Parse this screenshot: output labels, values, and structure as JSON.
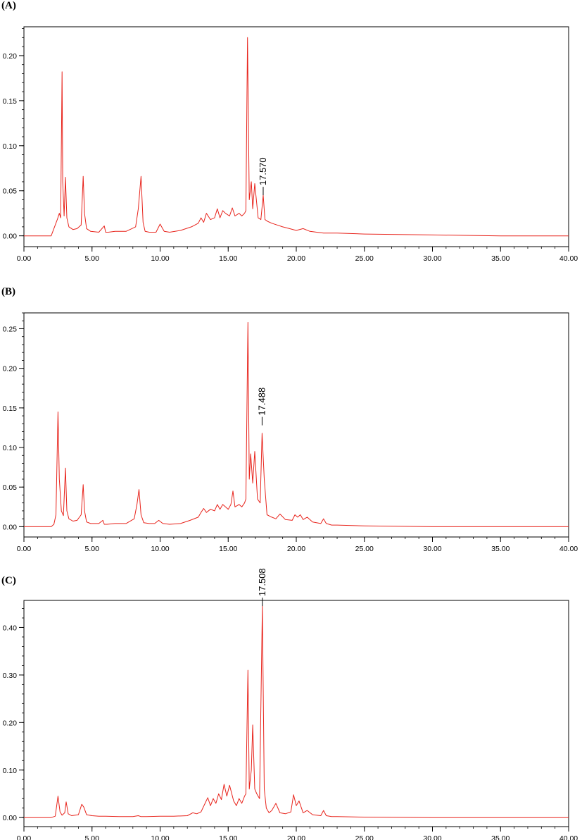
{
  "chart_data": [
    {
      "panel_label": "(A)",
      "type": "line",
      "xlim": [
        0,
        40
      ],
      "ylim": [
        -0.012,
        0.232
      ],
      "xticks": [
        "0.00",
        "5.00",
        "10.00",
        "15.00",
        "20.00",
        "25.00",
        "30.00",
        "35.00",
        "40.00"
      ],
      "xtick_values": [
        0,
        5,
        10,
        15,
        20,
        25,
        30,
        35,
        40
      ],
      "yticks": [
        "0.00",
        "0.05",
        "0.10",
        "0.15",
        "0.20"
      ],
      "ytick_values": [
        0,
        0.05,
        0.1,
        0.15,
        0.2
      ],
      "line_color": "#e8241c",
      "peak_annotation": {
        "text": "17.570",
        "x": 17.57,
        "y": 0.045
      },
      "series": [
        {
          "x": [
            0,
            2.0,
            2.3,
            2.45,
            2.6,
            2.7,
            2.8,
            2.85,
            2.95,
            3.05,
            3.15,
            3.3,
            3.6,
            3.9,
            4.2,
            4.35,
            4.45,
            4.6,
            4.9,
            5.5,
            5.9,
            6.0,
            6.2,
            6.7,
            7.5,
            8.2,
            8.4,
            8.6,
            8.75,
            8.9,
            9.2,
            9.7,
            10.0,
            10.3,
            10.7,
            11.5,
            12.3,
            12.8,
            13.0,
            13.2,
            13.4,
            13.7,
            14.0,
            14.2,
            14.4,
            14.6,
            14.8,
            15.1,
            15.3,
            15.5,
            15.8,
            16.0,
            16.2,
            16.3,
            16.42,
            16.55,
            16.7,
            16.8,
            16.95,
            17.2,
            17.4,
            17.57,
            17.7,
            17.9,
            18.2,
            18.6,
            19.0,
            19.5,
            20.0,
            20.5,
            21.0,
            21.5,
            22.0,
            23.0,
            25.0,
            30.0,
            35.0,
            40.0
          ],
          "y": [
            0,
            0.0,
            0.012,
            0.018,
            0.025,
            0.02,
            0.182,
            0.06,
            0.022,
            0.065,
            0.02,
            0.01,
            0.007,
            0.008,
            0.012,
            0.066,
            0.025,
            0.008,
            0.005,
            0.004,
            0.011,
            0.004,
            0.004,
            0.005,
            0.005,
            0.01,
            0.03,
            0.066,
            0.015,
            0.005,
            0.004,
            0.004,
            0.013,
            0.005,
            0.004,
            0.006,
            0.01,
            0.014,
            0.02,
            0.015,
            0.025,
            0.018,
            0.02,
            0.03,
            0.02,
            0.028,
            0.025,
            0.022,
            0.031,
            0.022,
            0.025,
            0.022,
            0.025,
            0.028,
            0.22,
            0.04,
            0.06,
            0.03,
            0.058,
            0.02,
            0.018,
            0.045,
            0.018,
            0.016,
            0.014,
            0.012,
            0.01,
            0.008,
            0.006,
            0.008,
            0.005,
            0.004,
            0.003,
            0.003,
            0.002,
            0.001,
            0.0,
            0.0
          ]
        }
      ]
    },
    {
      "panel_label": "(B)",
      "type": "line",
      "xlim": [
        0,
        40
      ],
      "ylim": [
        -0.013,
        0.27
      ],
      "xticks": [
        "0.00",
        "5.00",
        "10.00",
        "15.00",
        "20.00",
        "25.00",
        "30.00",
        "35.00",
        "40.00"
      ],
      "xtick_values": [
        0,
        5,
        10,
        15,
        20,
        25,
        30,
        35,
        40
      ],
      "yticks": [
        "0.00",
        "0.05",
        "0.10",
        "0.15",
        "0.20",
        "0.25"
      ],
      "ytick_values": [
        0,
        0.05,
        0.1,
        0.15,
        0.2,
        0.25
      ],
      "line_color": "#e8241c",
      "peak_annotation": {
        "text": "17.488",
        "x": 17.49,
        "y": 0.128
      },
      "series": [
        {
          "x": [
            0,
            2.0,
            2.2,
            2.35,
            2.5,
            2.6,
            2.75,
            2.9,
            3.05,
            3.15,
            3.3,
            3.6,
            3.9,
            4.2,
            4.35,
            4.45,
            4.6,
            4.9,
            5.5,
            5.8,
            5.9,
            6.1,
            6.7,
            7.5,
            8.1,
            8.3,
            8.45,
            8.6,
            8.8,
            9.2,
            9.6,
            9.9,
            10.2,
            10.7,
            11.5,
            12.2,
            12.8,
            13.0,
            13.2,
            13.4,
            13.7,
            14.0,
            14.2,
            14.4,
            14.6,
            14.8,
            15.0,
            15.2,
            15.35,
            15.5,
            15.8,
            16.0,
            16.2,
            16.3,
            16.45,
            16.55,
            16.65,
            16.8,
            16.95,
            17.15,
            17.35,
            17.49,
            17.65,
            17.85,
            18.2,
            18.5,
            18.8,
            19.2,
            19.7,
            19.9,
            20.1,
            20.3,
            20.5,
            20.8,
            21.2,
            21.8,
            22.0,
            22.2,
            22.6,
            23.0,
            25.0,
            30.0,
            35.0,
            40.0
          ],
          "y": [
            0,
            0.0,
            0.003,
            0.015,
            0.145,
            0.06,
            0.02,
            0.014,
            0.074,
            0.02,
            0.01,
            0.007,
            0.008,
            0.015,
            0.053,
            0.02,
            0.006,
            0.004,
            0.004,
            0.008,
            0.003,
            0.003,
            0.004,
            0.004,
            0.01,
            0.028,
            0.047,
            0.015,
            0.005,
            0.004,
            0.004,
            0.008,
            0.004,
            0.003,
            0.004,
            0.008,
            0.012,
            0.018,
            0.023,
            0.018,
            0.022,
            0.02,
            0.028,
            0.022,
            0.028,
            0.025,
            0.022,
            0.028,
            0.045,
            0.025,
            0.028,
            0.025,
            0.03,
            0.035,
            0.258,
            0.06,
            0.092,
            0.055,
            0.095,
            0.035,
            0.03,
            0.118,
            0.06,
            0.015,
            0.012,
            0.01,
            0.016,
            0.009,
            0.008,
            0.015,
            0.012,
            0.015,
            0.009,
            0.012,
            0.006,
            0.004,
            0.01,
            0.004,
            0.002,
            0.002,
            0.001,
            0.0,
            0.0,
            0.0
          ]
        }
      ]
    },
    {
      "panel_label": "(C)",
      "type": "line",
      "xlim": [
        0,
        40
      ],
      "ylim": [
        -0.019,
        0.457
      ],
      "xticks": [
        "0.00",
        "5.00",
        "10.00",
        "15.00",
        "20.00",
        "25.00",
        "30.00",
        "35.00",
        "40.00"
      ],
      "xtick_values": [
        0,
        5,
        10,
        15,
        20,
        25,
        30,
        35,
        40
      ],
      "yticks": [
        "0.00",
        "0.10",
        "0.20",
        "0.30",
        "0.40"
      ],
      "ytick_values": [
        0,
        0.1,
        0.2,
        0.3,
        0.4
      ],
      "line_color": "#e8241c",
      "peak_annotation": {
        "text": "17.508",
        "x": 17.51,
        "y": 0.445
      },
      "series": [
        {
          "x": [
            0,
            2.0,
            2.3,
            2.5,
            2.65,
            2.8,
            3.0,
            3.1,
            3.25,
            3.5,
            4.0,
            4.25,
            4.4,
            4.6,
            5.0,
            5.5,
            6.0,
            7.0,
            8.0,
            8.4,
            8.6,
            9.0,
            10.0,
            11.0,
            12.0,
            12.4,
            12.7,
            13.0,
            13.3,
            13.5,
            13.7,
            13.9,
            14.1,
            14.3,
            14.5,
            14.7,
            14.9,
            15.1,
            15.4,
            15.6,
            15.8,
            16.0,
            16.2,
            16.3,
            16.45,
            16.55,
            16.7,
            16.8,
            16.95,
            17.1,
            17.3,
            17.51,
            17.65,
            17.8,
            18.0,
            18.2,
            18.5,
            18.8,
            19.2,
            19.6,
            19.8,
            20.0,
            20.2,
            20.5,
            20.8,
            21.2,
            21.8,
            22.0,
            22.2,
            22.6,
            23.0,
            25.0,
            30.0,
            35.0,
            40.0
          ],
          "y": [
            0,
            0.0,
            0.003,
            0.045,
            0.012,
            0.005,
            0.01,
            0.033,
            0.008,
            0.004,
            0.006,
            0.028,
            0.022,
            0.006,
            0.004,
            0.003,
            0.003,
            0.002,
            0.002,
            0.004,
            0.002,
            0.002,
            0.003,
            0.003,
            0.004,
            0.01,
            0.008,
            0.012,
            0.03,
            0.042,
            0.025,
            0.04,
            0.03,
            0.05,
            0.038,
            0.07,
            0.045,
            0.068,
            0.035,
            0.025,
            0.04,
            0.03,
            0.045,
            0.05,
            0.31,
            0.06,
            0.1,
            0.195,
            0.06,
            0.05,
            0.04,
            0.445,
            0.06,
            0.02,
            0.01,
            0.015,
            0.03,
            0.01,
            0.008,
            0.012,
            0.048,
            0.025,
            0.035,
            0.01,
            0.015,
            0.006,
            0.004,
            0.015,
            0.004,
            0.002,
            0.002,
            0.001,
            0.0,
            0.0,
            0.0
          ]
        }
      ]
    }
  ]
}
